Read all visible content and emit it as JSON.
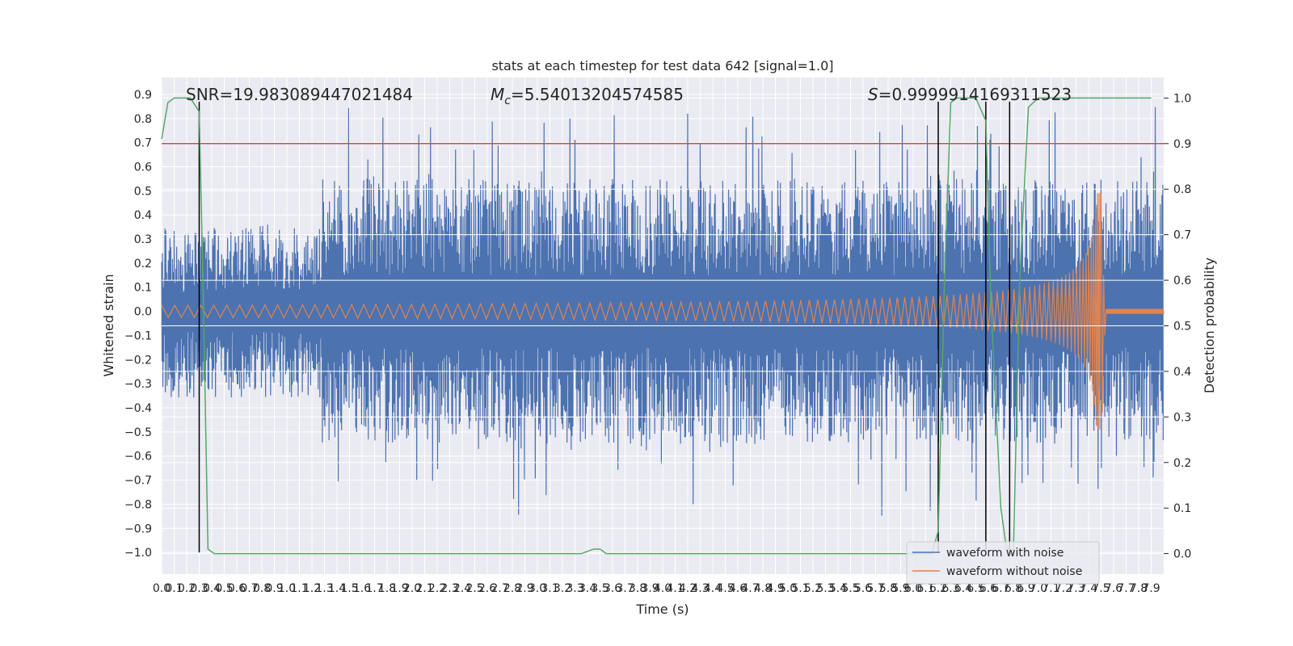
{
  "chart_data": {
    "type": "line",
    "title": "stats at each timestep for test data 642 [signal=1.0]",
    "xlabel": "Time (s)",
    "ylabel": "Whitened strain",
    "ylabel_right": "Detection probability",
    "xlim": [
      0.0,
      8.0
    ],
    "ylim": [
      -1.09,
      0.97
    ],
    "ylim_right": [
      -0.045,
      1.045
    ],
    "x_ticks": [
      0.0,
      0.1,
      0.2,
      0.3,
      0.4,
      0.5,
      0.6,
      0.7,
      0.8,
      0.9,
      1.0,
      1.1,
      1.2,
      1.3,
      1.4,
      1.5,
      1.6,
      1.7,
      1.8,
      1.9,
      2.0,
      2.1,
      2.2,
      2.3,
      2.4,
      2.5,
      2.6,
      2.7,
      2.8,
      2.9,
      3.0,
      3.1,
      3.2,
      3.3,
      3.4,
      3.5,
      3.6,
      3.7,
      3.8,
      3.9,
      4.0,
      4.1,
      4.2,
      4.3,
      4.4,
      4.5,
      4.6,
      4.7,
      4.8,
      4.9,
      5.0,
      5.1,
      5.2,
      5.3,
      5.4,
      5.5,
      5.6,
      5.7,
      5.8,
      5.9,
      6.0,
      6.1,
      6.2,
      6.3,
      6.4,
      6.5,
      6.6,
      6.7,
      6.8,
      6.9,
      7.0,
      7.1,
      7.2,
      7.3,
      7.4,
      7.5,
      7.6,
      7.7,
      7.8,
      7.9
    ],
    "y_ticks": [
      -1.0,
      -0.9,
      -0.8,
      -0.7,
      -0.6,
      -0.5,
      -0.4,
      -0.3,
      -0.2,
      -0.1,
      0.0,
      0.1,
      0.2,
      0.3,
      0.4,
      0.5,
      0.6,
      0.7,
      0.8,
      0.9
    ],
    "y_ticks_right": [
      0.0,
      0.1,
      0.2,
      0.3,
      0.4,
      0.5,
      0.6,
      0.7,
      0.8,
      0.9,
      1.0
    ],
    "grid": true,
    "legend_position": "lower-right",
    "threshold": {
      "y_right": 0.9,
      "color": "#c44e52"
    },
    "vertical_markers_x": [
      0.3,
      6.2,
      6.58,
      6.77
    ],
    "series": [
      {
        "name": "waveform with noise",
        "color": "#4c72b0",
        "band_low": -0.45,
        "band_high": 0.45,
        "y_max": 0.88,
        "y_min": -0.99
      },
      {
        "name": "waveform without noise",
        "color": "#dd8452",
        "amp_start": 0.025,
        "amp_end": 0.49,
        "merger_x": 7.5,
        "post_merger_x": 7.55,
        "post_merger_amp": 0.01
      },
      {
        "name": "detection probability",
        "color": "#55a868",
        "axis": "right",
        "x": [
          0.0,
          0.05,
          0.1,
          0.2,
          0.23,
          0.3,
          0.33,
          0.37,
          0.42,
          3.35,
          3.45,
          3.5,
          3.55,
          6.1,
          6.15,
          6.2,
          6.25,
          6.3,
          6.35,
          6.5,
          6.58,
          6.62,
          6.7,
          6.75,
          6.8,
          6.85,
          6.92,
          7.0,
          7.5,
          7.9
        ],
        "y": [
          0.91,
          0.99,
          1.0,
          1.0,
          1.0,
          0.97,
          0.6,
          0.01,
          0.0,
          0.0,
          0.01,
          0.01,
          0.0,
          0.0,
          0.0,
          0.05,
          0.6,
          0.99,
          1.0,
          1.0,
          0.95,
          0.55,
          0.1,
          0.0,
          0.0,
          0.6,
          0.98,
          1.0,
          1.0,
          1.0
        ]
      }
    ],
    "annotations": {
      "snr": "SNR=19.983089447021484",
      "mc_var": "M",
      "mc_sub": "c",
      "mc_val": "=5.54013204574585",
      "s_var": "S",
      "s_val": "=0.9999914169311523"
    }
  }
}
